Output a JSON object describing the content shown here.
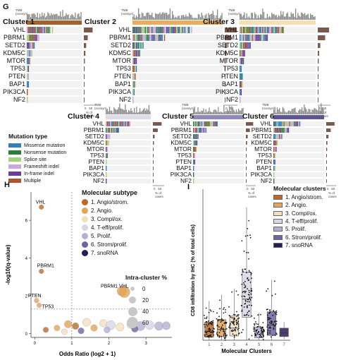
{
  "panel_G": {
    "letter": "G",
    "genes": [
      "VHL",
      "PBRM1",
      "SETD2",
      "KDM5C",
      "MTOR",
      "TP53",
      "PTEN",
      "BAP1",
      "PIK3CA",
      "NF2"
    ],
    "tmb_label": "TMB\n(nonsyn)",
    "tmb_ticks": [
      "5",
      "0"
    ],
    "pct_ticks": [
      "0",
      "50"
    ],
    "pct_label": "% of\ncases",
    "clusters": [
      {
        "title": "Cluster 1",
        "header_color": "#a0632b",
        "gene_pct": [
          45,
          20,
          12,
          8,
          5,
          4,
          3,
          3,
          2,
          1
        ]
      },
      {
        "title": "Cluster 2",
        "header_color": "#e7ae5c",
        "gene_pct": [
          62,
          33,
          12,
          8,
          5,
          4,
          3,
          3,
          2,
          1
        ]
      },
      {
        "title": "Cluster 3",
        "header_color": "#f6dfb3",
        "gene_pct": [
          58,
          38,
          13,
          7,
          5,
          3,
          3,
          3,
          2,
          1
        ]
      },
      {
        "title": "Cluster 4",
        "header_color": "#dedbe9",
        "gene_pct": [
          50,
          28,
          10,
          6,
          4,
          3,
          2,
          2,
          2,
          1
        ]
      },
      {
        "title": "Cluster 5",
        "header_color": "#9089bd",
        "gene_pct": [
          48,
          26,
          12,
          8,
          5,
          3,
          3,
          2,
          2,
          1
        ]
      },
      {
        "title": "Cluster 6",
        "header_color": "#5e5599",
        "gene_pct": [
          55,
          30,
          15,
          8,
          6,
          4,
          3,
          3,
          2,
          1
        ]
      }
    ],
    "legend": {
      "title": "Mutation type",
      "items": [
        {
          "label": "Missense mutation",
          "color": "#2f7fc1"
        },
        {
          "label": "Nonsense mutation",
          "color": "#2f7d3b"
        },
        {
          "label": "Splice site",
          "color": "#a3d17a"
        },
        {
          "label": "Frameshift indel",
          "color": "#c8a7e0"
        },
        {
          "label": "In-frame indel",
          "color": "#6a3c9c"
        },
        {
          "label": "Multiple",
          "color": "#b0552b"
        }
      ]
    }
  },
  "panel_H": {
    "letter": "H",
    "ylabel": "-log10(q-value)",
    "xlabel": "Odds Ratio (log2 + 1)",
    "legend_subtype_title": "Molecular subtype",
    "subtypes": [
      {
        "label": "1. Angio/strom.",
        "color": "#b86b2a"
      },
      {
        "label": "2. Angio.",
        "color": "#e2a45a"
      },
      {
        "label": "3. Compl/ox.",
        "color": "#f4dfbd"
      },
      {
        "label": "4. T-eff/prolif.",
        "color": "#d8d6e6"
      },
      {
        "label": "5. Prolif.",
        "color": "#b5b0d3"
      },
      {
        "label": "6. Strom/prolif.",
        "color": "#6e64a3"
      },
      {
        "label": "7. snoRNA",
        "color": "#2b1b56"
      }
    ],
    "legend_size_title": "Intra-cluster %",
    "size_levels": [
      "0",
      "20",
      "40",
      "60"
    ],
    "annotations": [
      "VHL",
      "PBRM1",
      "PTEN",
      "TP53",
      "PBRM1 VHL"
    ]
  },
  "chart_data": [
    {
      "type": "scatter",
      "title": "",
      "xlabel": "Odds Ratio (log2 + 1)",
      "ylabel": "-log10(q-value)",
      "xticks": [
        "0",
        "1",
        "2",
        "3"
      ],
      "yticks": [
        "0",
        "2",
        "4",
        "6"
      ],
      "xlim": [
        -0.1,
        3.7
      ],
      "ylim": [
        -0.2,
        7.5
      ],
      "threshold_y": 1.3,
      "threshold_x": 1.0,
      "points": [
        {
          "label": "VHL",
          "x": 0.18,
          "y": 6.7,
          "cluster": 1,
          "size": 5
        },
        {
          "label": "PBRM1",
          "x": 0.18,
          "y": 3.3,
          "cluster": 1,
          "size": 5
        },
        {
          "label": "PTEN",
          "x": 0.05,
          "y": 1.75,
          "cluster": 2,
          "size": 5
        },
        {
          "label": "TP53",
          "x": 0.12,
          "y": 1.5,
          "cluster": 2,
          "size": 5
        },
        {
          "label": "PBRM1",
          "x": 2.35,
          "y": 2.25,
          "cluster": 2,
          "size": 40
        },
        {
          "label": "VHL",
          "x": 2.42,
          "y": 2.2,
          "cluster": 2,
          "size": 55
        },
        {
          "label": "",
          "x": 0.9,
          "y": 0.5,
          "cluster": 2,
          "size": 20
        },
        {
          "label": "",
          "x": 1.1,
          "y": 0.4,
          "cluster": 1,
          "size": 15
        },
        {
          "label": "",
          "x": 1.4,
          "y": 0.6,
          "cluster": 3,
          "size": 25
        },
        {
          "label": "",
          "x": 1.6,
          "y": 0.3,
          "cluster": 2,
          "size": 15
        },
        {
          "label": "",
          "x": 1.85,
          "y": 0.55,
          "cluster": 3,
          "size": 20
        },
        {
          "label": "",
          "x": 2.05,
          "y": 0.45,
          "cluster": 4,
          "size": 35
        },
        {
          "label": "",
          "x": 2.3,
          "y": 0.35,
          "cluster": 3,
          "size": 25
        },
        {
          "label": "",
          "x": 2.6,
          "y": 0.5,
          "cluster": 4,
          "size": 30
        },
        {
          "label": "",
          "x": 2.85,
          "y": 0.4,
          "cluster": 5,
          "size": 35
        },
        {
          "label": "",
          "x": 3.1,
          "y": 0.45,
          "cluster": 4,
          "size": 30
        },
        {
          "label": "",
          "x": 3.35,
          "y": 0.4,
          "cluster": 5,
          "size": 30
        },
        {
          "label": "",
          "x": 3.55,
          "y": 0.42,
          "cluster": 5,
          "size": 25
        },
        {
          "label": "",
          "x": 0.3,
          "y": 0.2,
          "cluster": 1,
          "size": 8
        },
        {
          "label": "",
          "x": 0.6,
          "y": 0.3,
          "cluster": 2,
          "size": 10
        },
        {
          "label": "",
          "x": 0.8,
          "y": 0.1,
          "cluster": 3,
          "size": 10
        },
        {
          "label": "",
          "x": 1.25,
          "y": 0.15,
          "cluster": 6,
          "size": 12
        },
        {
          "label": "",
          "x": 1.95,
          "y": 0.2,
          "cluster": 5,
          "size": 12
        },
        {
          "label": "",
          "x": 2.7,
          "y": 0.25,
          "cluster": 6,
          "size": 15
        }
      ]
    },
    {
      "type": "box",
      "title": "",
      "panel_letter": "I",
      "xlabel": "Molecular Clusters",
      "ylabel": "CD8 infiltration by IHC (% of total cells)",
      "legend_title": "Molecular clusters",
      "categories": [
        "1",
        "2",
        "3",
        "4",
        "5",
        "6",
        "7"
      ],
      "ylim": [
        0,
        25
      ],
      "boxes": [
        {
          "name": "1. Angio/strom.",
          "color": "#b86b2a",
          "q1": 0.5,
          "median": 1.5,
          "q3": 3.0,
          "whislo": 0,
          "whishi": 6.5
        },
        {
          "name": "2. Angio.",
          "color": "#e2a45a",
          "q1": 0.6,
          "median": 1.8,
          "q3": 3.4,
          "whislo": 0,
          "whishi": 7.5
        },
        {
          "name": "3. Compl/ox.",
          "color": "#f4dfbd",
          "q1": 0.7,
          "median": 2.0,
          "q3": 4.0,
          "whislo": 0,
          "whishi": 8.5
        },
        {
          "name": "4. T-eff/prolif.",
          "color": "#d8d6e6",
          "q1": 3.8,
          "median": 6.8,
          "q3": 11.3,
          "whislo": 0,
          "whishi": 22.0
        },
        {
          "name": "5. Prolif.",
          "color": "#b5b0d3",
          "q1": 0.4,
          "median": 1.0,
          "q3": 2.2,
          "whislo": 0,
          "whishi": 4.5
        },
        {
          "name": "6. Strom/prolif.",
          "color": "#6e64a3",
          "q1": 0.8,
          "median": 2.5,
          "q3": 4.7,
          "whislo": 0,
          "whishi": 10.0
        },
        {
          "name": "7. snoRNA",
          "color": "#2b1b56",
          "q1": 0.6,
          "median": 1.2,
          "q3": 2.0,
          "whislo": 0.2,
          "whishi": 3.0
        }
      ]
    }
  ]
}
